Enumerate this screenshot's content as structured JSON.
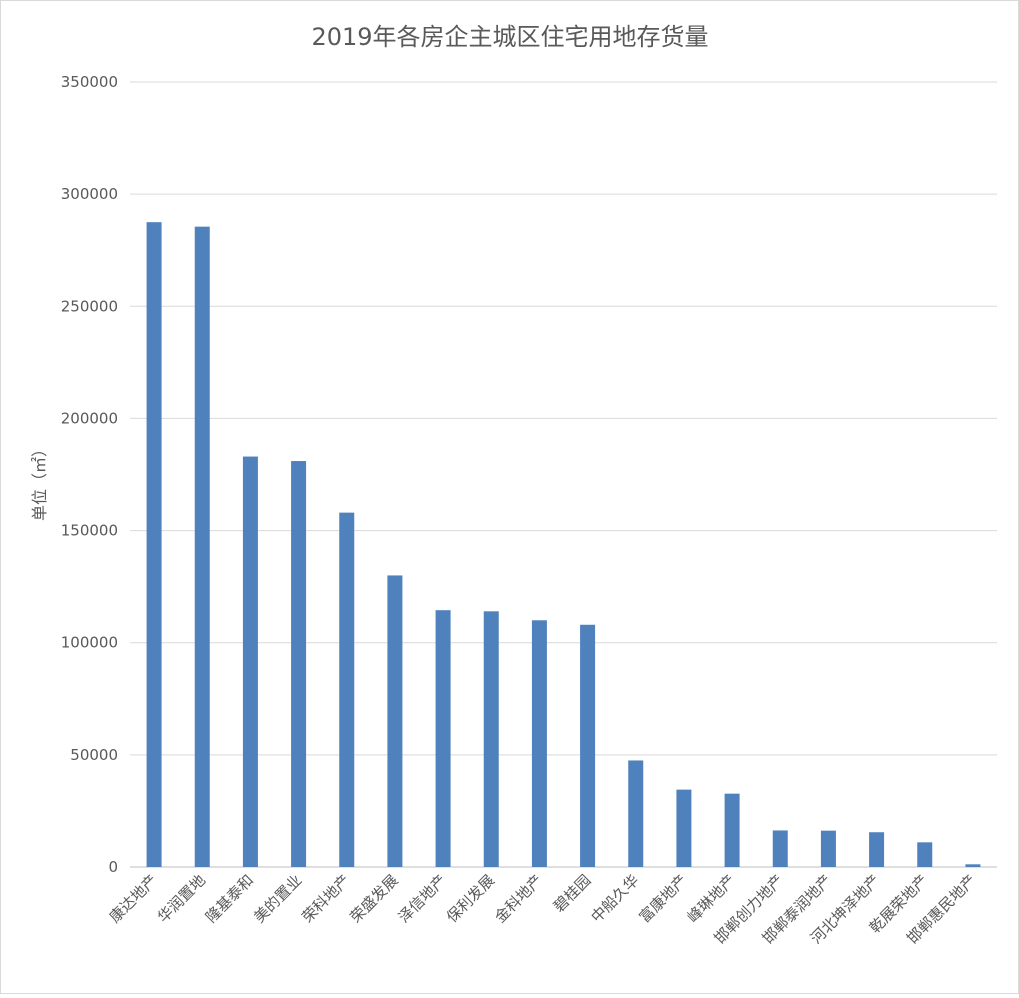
{
  "chart_data": {
    "type": "bar",
    "title": "2019年各房企主城区住宅用地存货量",
    "ylabel": "单位（㎡）",
    "xlabel": "",
    "ylim": [
      0,
      350000
    ],
    "yticks": [
      0,
      50000,
      100000,
      150000,
      200000,
      250000,
      300000,
      350000
    ],
    "grid": true,
    "legend": "none",
    "bar_color": "#4f81bd",
    "categories": [
      "康达地产",
      "华润置地",
      "隆基泰和",
      "美的置业",
      "荣科地产",
      "荣盛发展",
      "泽信地产",
      "保利发展",
      "金科地产",
      "碧桂园",
      "中船久华",
      "富康地产",
      "峰琳地产",
      "邯郸创力地产",
      "邯郸泰润地产",
      "河北坤泽地产",
      "乾展荣地产",
      "邯郸惠民地产"
    ],
    "values": [
      287500,
      285500,
      183000,
      181000,
      158000,
      130000,
      114500,
      114000,
      110000,
      108000,
      47500,
      34500,
      32700,
      16300,
      16200,
      15500,
      11000,
      1200
    ]
  }
}
